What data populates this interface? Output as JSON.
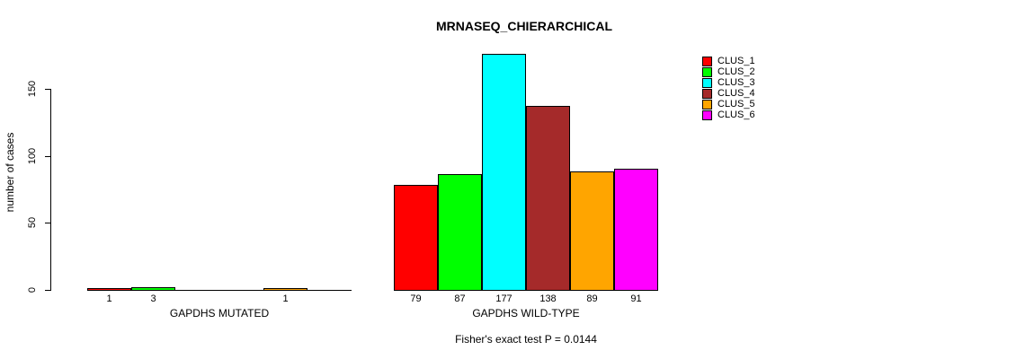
{
  "chart_data": {
    "type": "bar",
    "title": "MRNASEQ_CHIERARCHICAL",
    "ylabel": "number of cases",
    "yticks": [
      0,
      50,
      100,
      150
    ],
    "ylim": [
      0,
      177
    ],
    "grid": false,
    "legend_position": "top-right",
    "series": [
      {
        "name": "CLUS_1",
        "color": "#ff0000"
      },
      {
        "name": "CLUS_2",
        "color": "#00ff00"
      },
      {
        "name": "CLUS_3",
        "color": "#00ffff"
      },
      {
        "name": "CLUS_4",
        "color": "#a52a2a"
      },
      {
        "name": "CLUS_5",
        "color": "#ffa500"
      },
      {
        "name": "CLUS_6",
        "color": "#ff00ff"
      }
    ],
    "groups": [
      {
        "label": "GAPDHS MUTATED",
        "values": [
          1,
          3,
          0,
          0,
          1,
          0
        ]
      },
      {
        "label": "GAPDHS WILD-TYPE",
        "values": [
          79,
          87,
          177,
          138,
          89,
          91
        ]
      }
    ],
    "annotation": "Fisher's exact test P = 0.0144"
  }
}
